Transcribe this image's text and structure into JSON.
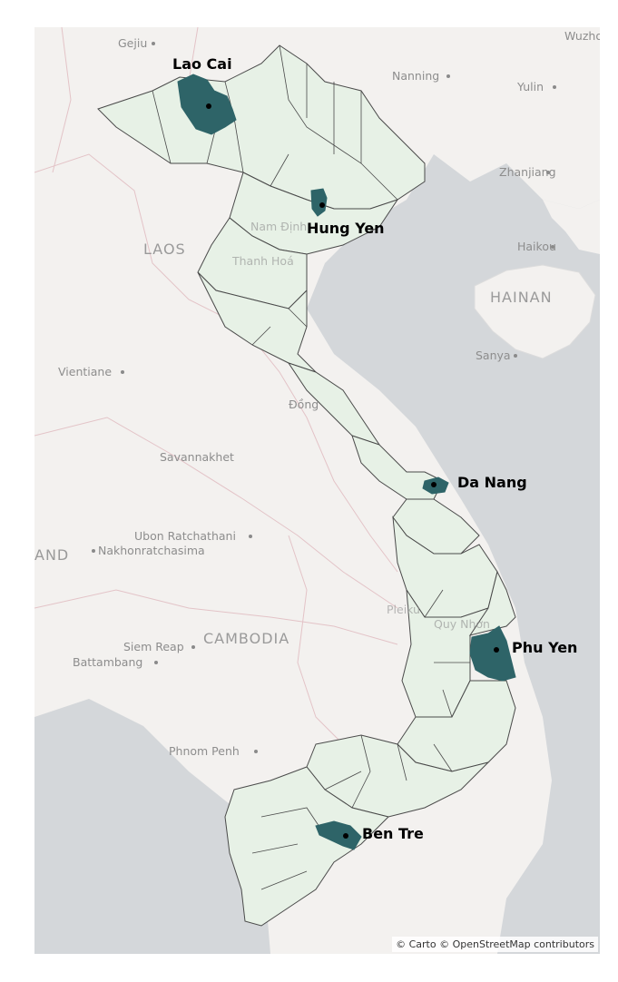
{
  "map": {
    "colors": {
      "sea": "#d4d7da",
      "land": "#f3f1ef",
      "province_fill": "#e7f1e6",
      "province_border": "#4a4a4a",
      "highlight_fill": "#2e6468",
      "marker": "#000000",
      "admin_border": "#e3c3c7"
    },
    "highlighted_provinces": [
      {
        "name": "Lao Cai"
      },
      {
        "name": "Hung Yen"
      },
      {
        "name": "Da Nang"
      },
      {
        "name": "Phu Yen"
      },
      {
        "name": "Ben Tre"
      }
    ],
    "basemap_places": [
      {
        "name": "Gejiu"
      },
      {
        "name": "Wuzhou"
      },
      {
        "name": "Nanning"
      },
      {
        "name": "Yulin"
      },
      {
        "name": "Zhanjiang"
      },
      {
        "name": "Haikou"
      },
      {
        "name": "Sanya"
      },
      {
        "name": "Vientiane"
      },
      {
        "name": "Savannakhet"
      },
      {
        "name": "Ubon Ratchathani"
      },
      {
        "name": "Nakhonratchasima"
      },
      {
        "name": "Siem Reap"
      },
      {
        "name": "Battambang"
      },
      {
        "name": "Phnom Penh"
      },
      {
        "name": "Đồng"
      },
      {
        "name": "Thanh Hoá"
      },
      {
        "name": "Nam Định"
      },
      {
        "name": "Quy Nhơn"
      },
      {
        "name": "Pleiku"
      }
    ],
    "country_labels": [
      {
        "name": "LAOS"
      },
      {
        "name": "HAINAN"
      },
      {
        "name": "CAMBODIA"
      },
      {
        "name": "AND"
      }
    ],
    "attribution": "© Carto © OpenStreetMap contributors"
  }
}
